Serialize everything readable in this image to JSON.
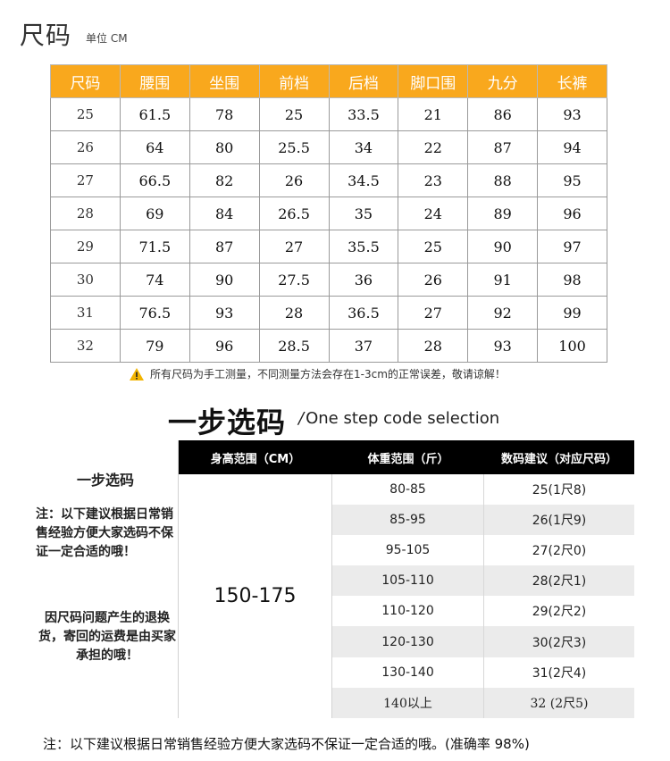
{
  "header": {
    "title": "尺码",
    "unit": "单位 CM"
  },
  "size_table": {
    "columns": [
      "尺码",
      "腰围",
      "坐围",
      "前档",
      "后档",
      "脚口围",
      "九分",
      "长裤"
    ],
    "rows": [
      [
        "25",
        "61.5",
        "78",
        "25",
        "33.5",
        "21",
        "86",
        "93"
      ],
      [
        "26",
        "64",
        "80",
        "25.5",
        "34",
        "22",
        "87",
        "94"
      ],
      [
        "27",
        "66.5",
        "82",
        "26",
        "34.5",
        "23",
        "88",
        "95"
      ],
      [
        "28",
        "69",
        "84",
        "26.5",
        "35",
        "24",
        "89",
        "96"
      ],
      [
        "29",
        "71.5",
        "87",
        "27",
        "35.5",
        "25",
        "90",
        "97"
      ],
      [
        "30",
        "74",
        "90",
        "27.5",
        "36",
        "26",
        "91",
        "98"
      ],
      [
        "31",
        "76.5",
        "93",
        "28",
        "36.5",
        "27",
        "92",
        "99"
      ],
      [
        "32",
        "79",
        "96",
        "28.5",
        "37",
        "28",
        "93",
        "100"
      ]
    ]
  },
  "warning": {
    "icon": "warning-triangle-icon",
    "text": "所有尺码为手工测量，不同测量方法会存在1-3cm的正常误差，敬请谅解！"
  },
  "section": {
    "title": "一步选码",
    "slash": "/",
    "subtitle": "One step code selection"
  },
  "panel": {
    "left_heading": "一步选码",
    "note1": "注：以下建议根据日常销售经验方便大家选码不保证一定合适的哦！",
    "note2": "因尺码问题产生的退换货，寄回的运费是由买家承担的哦！",
    "headers": {
      "height": "身高范围（CM）",
      "weight": "体重范围（斤）",
      "size": "数码建议（对应尺码）"
    },
    "height_range": "150-175",
    "rows": [
      {
        "weight": "80-85",
        "size": "25(1尺8)"
      },
      {
        "weight": "85-95",
        "size": "26(1尺9)"
      },
      {
        "weight": "95-105",
        "size": "27(2尺0)"
      },
      {
        "weight": "105-110",
        "size": "28(2尺1)"
      },
      {
        "weight": "110-120",
        "size": "29(2尺2)"
      },
      {
        "weight": "120-130",
        "size": "30(2尺3)"
      },
      {
        "weight": "130-140",
        "size": "31(2尺4)"
      },
      {
        "weight": "140以上",
        "size": "32 (2尺5)"
      }
    ]
  },
  "footer": {
    "text": "注：以下建议根据日常销售经验方便大家选码不保证一定合适的哦。(准确率 98%)"
  },
  "colors": {
    "accent": "#f9a81d",
    "header_bg": "#000000",
    "stripe": "#ebebeb"
  }
}
